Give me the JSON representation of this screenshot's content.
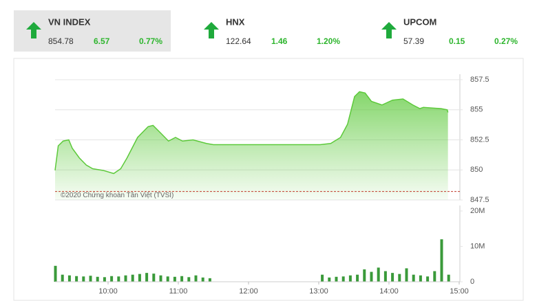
{
  "tiles": [
    {
      "name": "VN INDEX",
      "price": "854.78",
      "change": "6.57",
      "percent": "0.77%"
    },
    {
      "name": "HNX",
      "price": "122.64",
      "change": "1.46",
      "percent": "1.20%"
    },
    {
      "name": "UPCOM",
      "price": "57.39",
      "change": "0.15",
      "percent": "0.27%"
    }
  ],
  "chart_data": [
    {
      "type": "area",
      "watermark": "©2020 Chứng khoán Tân Việt (TVSI)",
      "color": "#5cc93a",
      "reference": 848.21,
      "reference_color": "#c0392b",
      "x": [
        9.245,
        9.29,
        9.36,
        9.44,
        9.49,
        9.59,
        9.69,
        9.78,
        9.93,
        10.08,
        10.18,
        10.27,
        10.42,
        10.57,
        10.64,
        10.76,
        10.86,
        10.96,
        11.06,
        11.21,
        11.4,
        11.5,
        11.99,
        12.58,
        13.02,
        13.17,
        13.31,
        13.41,
        13.51,
        13.58,
        13.66,
        13.75,
        13.9,
        14.05,
        14.2,
        14.34,
        14.44,
        14.49,
        14.74,
        14.83,
        14.84
      ],
      "values": [
        849.96,
        852.0,
        852.4,
        852.5,
        851.8,
        851.0,
        850.4,
        850.1,
        849.96,
        849.7,
        850.1,
        851.0,
        852.7,
        853.6,
        853.7,
        853.0,
        852.4,
        852.7,
        852.4,
        852.5,
        852.2,
        852.1,
        852.1,
        852.1,
        852.1,
        852.2,
        852.7,
        853.8,
        856.1,
        856.5,
        856.4,
        855.7,
        855.4,
        855.8,
        855.9,
        855.4,
        855.1,
        855.2,
        855.1,
        855.0,
        854.78
      ],
      "xlim": [
        9.245,
        15.01
      ],
      "ylim": [
        847.5,
        857.5
      ],
      "yticks": [
        847.5,
        850,
        852.5,
        855,
        857.5
      ],
      "grid": true
    },
    {
      "type": "bar",
      "color": "#3a9a3a",
      "x": [
        9.25,
        9.35,
        9.45,
        9.55,
        9.65,
        9.75,
        9.85,
        9.95,
        10.05,
        10.15,
        10.25,
        10.35,
        10.45,
        10.55,
        10.65,
        10.75,
        10.85,
        10.95,
        11.05,
        11.15,
        11.25,
        11.35,
        11.45,
        13.05,
        13.15,
        13.25,
        13.35,
        13.45,
        13.55,
        13.65,
        13.75,
        13.85,
        13.95,
        14.05,
        14.15,
        14.25,
        14.35,
        14.45,
        14.55,
        14.65,
        14.75,
        14.85
      ],
      "values": [
        4500000,
        2000000,
        1800000,
        1600000,
        1500000,
        1700000,
        1400000,
        1300000,
        1600000,
        1500000,
        1800000,
        2000000,
        2200000,
        2500000,
        2300000,
        1800000,
        1500000,
        1400000,
        1600000,
        1300000,
        1800000,
        1200000,
        1000000,
        2000000,
        1200000,
        1400000,
        1500000,
        1800000,
        2000000,
        3500000,
        2800000,
        4000000,
        3000000,
        2500000,
        2200000,
        3800000,
        2000000,
        1800000,
        1500000,
        3000000,
        12000000,
        2000000
      ],
      "xlim": [
        9.245,
        15.01
      ],
      "ylim": [
        0,
        20000000
      ],
      "yticks": [
        {
          "value": 0,
          "label": "0"
        },
        {
          "value": 10000000,
          "label": "10M"
        },
        {
          "value": 20000000,
          "label": "20M"
        }
      ],
      "xticks": [
        {
          "value": 10,
          "label": "10:00"
        },
        {
          "value": 11,
          "label": "11:00"
        },
        {
          "value": 12,
          "label": "12:00"
        },
        {
          "value": 13,
          "label": "13:00"
        },
        {
          "value": 14,
          "label": "14:00"
        },
        {
          "value": 15,
          "label": "15:00"
        }
      ]
    }
  ]
}
